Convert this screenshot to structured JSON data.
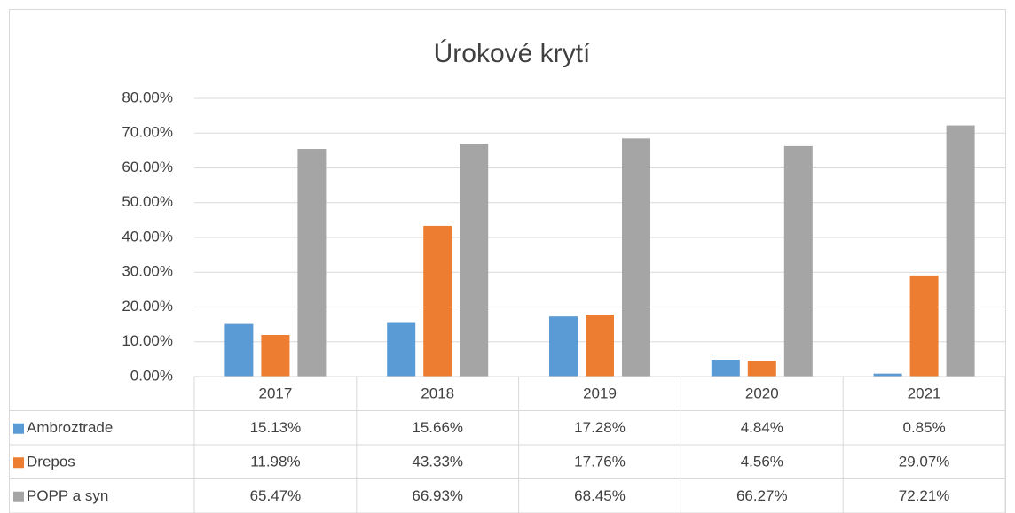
{
  "chart_data": {
    "type": "bar",
    "title": "Úrokové krytí",
    "categories": [
      "2017",
      "2018",
      "2019",
      "2020",
      "2021"
    ],
    "series": [
      {
        "name": "Ambroztrade",
        "color": "#5b9bd5",
        "values": [
          15.13,
          15.66,
          17.28,
          4.84,
          0.85
        ],
        "value_labels": [
          "15.13%",
          "15.66%",
          "17.28%",
          "4.84%",
          "0.85%"
        ]
      },
      {
        "name": "Drepos",
        "color": "#ed7d31",
        "values": [
          11.98,
          43.33,
          17.76,
          4.56,
          29.07
        ],
        "value_labels": [
          "11.98%",
          "43.33%",
          "17.76%",
          "4.56%",
          "29.07%"
        ]
      },
      {
        "name": "POPP a syn",
        "color": "#a5a5a5",
        "values": [
          65.47,
          66.93,
          68.45,
          66.27,
          72.21
        ],
        "value_labels": [
          "65.47%",
          "66.93%",
          "68.45%",
          "66.27%",
          "72.21%"
        ]
      }
    ],
    "ylim": [
      0,
      80
    ],
    "yticks": [
      {
        "value": 0,
        "label": "0.00%"
      },
      {
        "value": 10,
        "label": "10.00%"
      },
      {
        "value": 20,
        "label": "20.00%"
      },
      {
        "value": 30,
        "label": "30.00%"
      },
      {
        "value": 40,
        "label": "40.00%"
      },
      {
        "value": 50,
        "label": "50.00%"
      },
      {
        "value": 60,
        "label": "60.00%"
      },
      {
        "value": 70,
        "label": "70.00%"
      },
      {
        "value": 80,
        "label": "80.00%"
      }
    ],
    "grid": true
  }
}
